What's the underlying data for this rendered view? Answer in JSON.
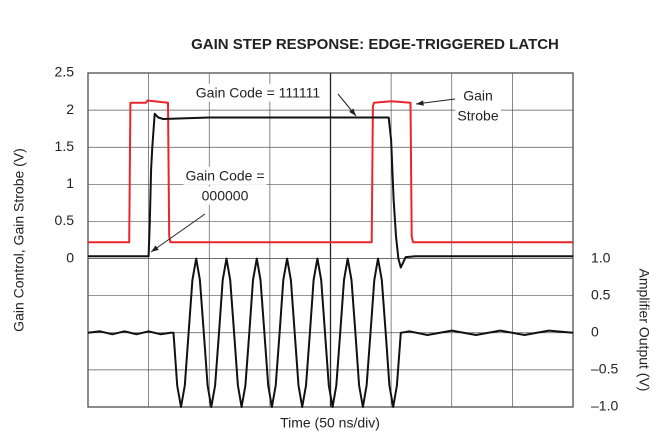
{
  "chart_data": {
    "type": "line",
    "title": "GAIN STEP RESPONSE: EDGE-TRIGGERED LATCH",
    "x_label": "Time (50 ns/div)",
    "y_label": "Gain Control, Gain Strobe (V)",
    "y2_label": "Amplifier Output (V)",
    "xlim": [
      0,
      400
    ],
    "xticks": [
      0,
      50,
      100,
      150,
      200,
      250,
      300,
      350,
      400
    ],
    "ylim": [
      -2.0,
      2.5
    ],
    "yticks": [
      0,
      0.5,
      1.0,
      1.5,
      2.0,
      2.5
    ],
    "y2lim": [
      -1.0,
      3.5
    ],
    "y2ticks": [
      {
        "value": -1.0,
        "label": "–1.0"
      },
      {
        "value": -0.5,
        "label": "–0.5"
      },
      0,
      0.5,
      {
        "value": 1.0,
        "label": "1.0"
      }
    ],
    "grid": true,
    "series": [
      {
        "name": "Gain Strobe",
        "color": "#e8262b",
        "x": [
          0,
          34,
          35,
          48,
          49,
          66,
          67,
          68,
          234,
          235,
          236,
          250,
          266,
          267,
          268,
          400
        ],
        "values": [
          0.22,
          0.22,
          2.1,
          2.1,
          2.13,
          2.1,
          0.3,
          0.22,
          0.22,
          2.05,
          2.1,
          2.12,
          2.1,
          0.3,
          0.22,
          0.22
        ]
      },
      {
        "name": "Gain Control",
        "color": "#111111",
        "x": [
          0,
          50,
          51,
          52,
          53,
          55,
          58,
          62,
          100,
          200,
          248,
          250,
          252,
          254,
          256,
          258,
          262,
          270,
          400
        ],
        "values": [
          0.03,
          0.03,
          0.5,
          1.2,
          1.5,
          1.95,
          1.9,
          1.88,
          1.9,
          1.9,
          1.9,
          1.6,
          0.8,
          0.3,
          0.0,
          -0.12,
          0.02,
          0.03,
          0.03
        ]
      },
      {
        "name": "Amplifier Output",
        "color": "#111111",
        "axis": "y2",
        "x": [
          0,
          10,
          20,
          30,
          40,
          50,
          60,
          68,
          70.5,
          73.6,
          76.7,
          79.8,
          83,
          86.1,
          89.2,
          92.3,
          95.5,
          98.6,
          101.7,
          104.8,
          108,
          111.1,
          114.2,
          117.3,
          120.5,
          123.6,
          126.7,
          129.8,
          133,
          136.1,
          139.2,
          142.3,
          145.5,
          148.6,
          151.7,
          154.8,
          158,
          161.1,
          164.2,
          167.3,
          170.5,
          173.6,
          176.7,
          179.8,
          183,
          186.1,
          189.2,
          192.3,
          195.5,
          198.6,
          201.7,
          204.8,
          208,
          211.1,
          214.2,
          217.3,
          220.5,
          223.6,
          226.7,
          229.8,
          233,
          236.1,
          239.2,
          242.3,
          245.5,
          248.6,
          251.7,
          254.8,
          258,
          265,
          280,
          300,
          320,
          340,
          360,
          380,
          400
        ],
        "values": [
          0,
          0.02,
          -0.02,
          0.02,
          -0.02,
          0.02,
          -0.02,
          0,
          0,
          -0.71,
          -1,
          -0.71,
          0,
          0.71,
          1,
          0.71,
          0,
          -0.71,
          -1,
          -0.71,
          0,
          0.71,
          1,
          0.71,
          0,
          -0.71,
          -1,
          -0.71,
          0,
          0.71,
          1,
          0.71,
          0,
          -0.71,
          -1,
          -0.71,
          0,
          0.71,
          1,
          0.71,
          0,
          -0.71,
          -1,
          -0.71,
          0,
          0.71,
          1,
          0.71,
          0,
          -0.71,
          -1,
          -0.71,
          0,
          0.71,
          1,
          0.71,
          0,
          -0.71,
          -1,
          -0.71,
          0,
          0.71,
          1,
          0.71,
          0,
          -0.71,
          -1,
          -0.71,
          0,
          0.02,
          -0.03,
          0.03,
          -0.03,
          0.03,
          -0.03,
          0.03,
          0
        ]
      }
    ],
    "annotations": [
      {
        "lines": [
          "Gain Code = 111111"
        ]
      },
      {
        "lines": [
          "Gain",
          "Strobe"
        ]
      },
      {
        "lines": [
          "Gain Code =",
          "000000"
        ]
      }
    ]
  }
}
